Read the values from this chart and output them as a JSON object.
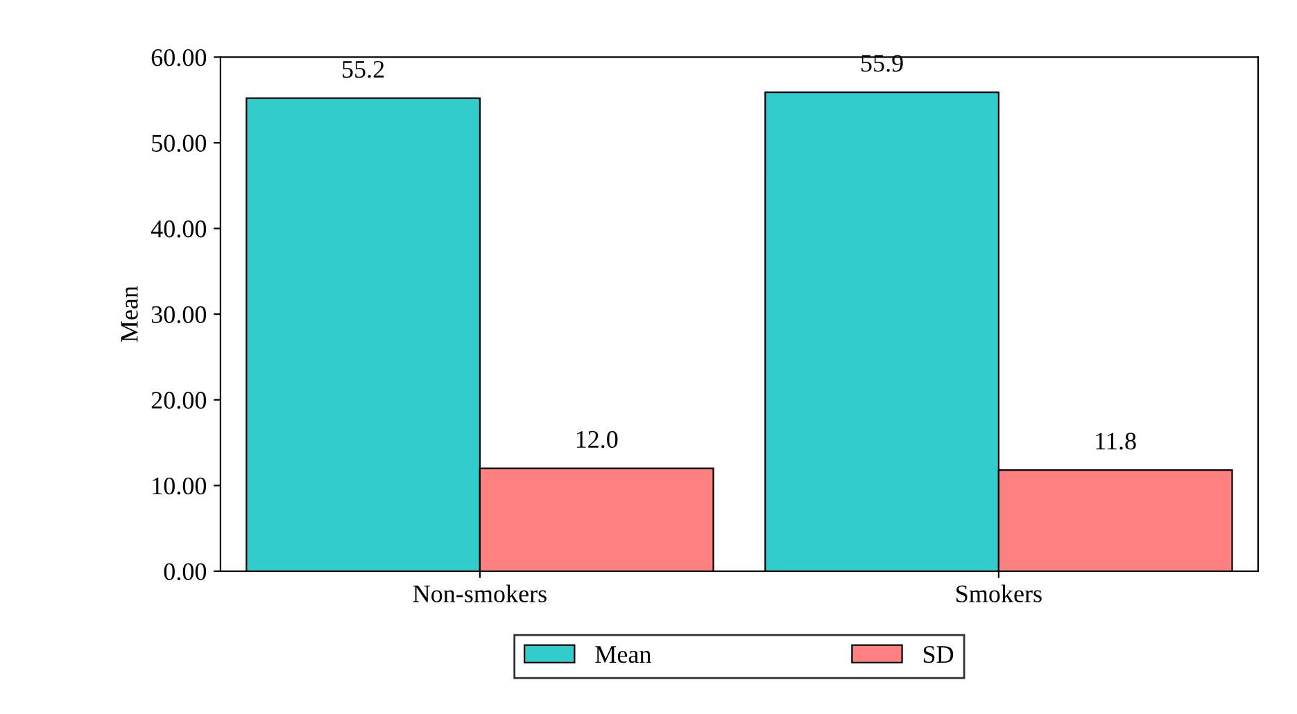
{
  "chart_data": {
    "type": "bar",
    "ylabel": "Mean",
    "categories": [
      "Non-smokers",
      "Smokers"
    ],
    "series": [
      {
        "name": "Mean",
        "color": "#33cccc",
        "values": [
          55.2,
          55.9
        ],
        "value_labels": [
          "55.2",
          "55.9"
        ]
      },
      {
        "name": "SD",
        "color": "#ff8080",
        "values": [
          12.0,
          11.8
        ],
        "value_labels": [
          "12.0",
          "11.8"
        ]
      }
    ],
    "ylim": [
      0,
      60
    ],
    "yticks": [
      {
        "value": 0,
        "label": "0.00"
      },
      {
        "value": 10,
        "label": "10.00"
      },
      {
        "value": 20,
        "label": "20.00"
      },
      {
        "value": 30,
        "label": "30.00"
      },
      {
        "value": 40,
        "label": "40.00"
      },
      {
        "value": 50,
        "label": "50.00"
      },
      {
        "value": 60,
        "label": "60.00"
      }
    ],
    "legend": "bottom",
    "grid": false
  }
}
